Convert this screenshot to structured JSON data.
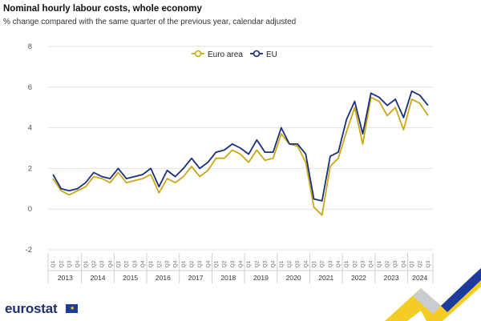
{
  "title": "Nominal hourly labour costs, whole economy",
  "subtitle": "% change compared with the same quarter of the previous year, calendar adjusted",
  "brand": {
    "name": "eurostat",
    "logo_icon": "eu-flag-icon"
  },
  "colors": {
    "euro_area": "#c9a816",
    "eu": "#1a2e7a",
    "grid": "#e3e3e3"
  },
  "chart_data": {
    "type": "line",
    "title": "Nominal hourly labour costs, whole economy",
    "subtitle": "% change compared with the same quarter of the previous year, calendar adjusted",
    "xlabel": "",
    "ylabel": "",
    "ylim": [
      -2,
      8
    ],
    "yticks": [
      "8",
      "6",
      "4",
      "2",
      "0",
      "-2"
    ],
    "grid": true,
    "legend_position": "top-center",
    "quarter_labels": [
      "Q1",
      "Q2",
      "Q3",
      "Q4"
    ],
    "years": [
      "2013",
      "2014",
      "2015",
      "2016",
      "2017",
      "2018",
      "2019",
      "2020",
      "2021",
      "2022",
      "2023",
      "2024"
    ],
    "x": [
      "2013-Q1",
      "2013-Q2",
      "2013-Q3",
      "2013-Q4",
      "2014-Q1",
      "2014-Q2",
      "2014-Q3",
      "2014-Q4",
      "2015-Q1",
      "2015-Q2",
      "2015-Q3",
      "2015-Q4",
      "2016-Q1",
      "2016-Q2",
      "2016-Q3",
      "2016-Q4",
      "2017-Q1",
      "2017-Q2",
      "2017-Q3",
      "2017-Q4",
      "2018-Q1",
      "2018-Q2",
      "2018-Q3",
      "2018-Q4",
      "2019-Q1",
      "2019-Q2",
      "2019-Q3",
      "2019-Q4",
      "2020-Q1",
      "2020-Q2",
      "2020-Q3",
      "2020-Q4",
      "2021-Q1",
      "2021-Q2",
      "2021-Q3",
      "2021-Q4",
      "2022-Q1",
      "2022-Q2",
      "2022-Q3",
      "2022-Q4",
      "2023-Q1",
      "2023-Q2",
      "2023-Q3",
      "2023-Q4",
      "2024-Q1",
      "2024-Q2",
      "2024-Q3"
    ],
    "series": [
      {
        "name": "Euro area",
        "color": "#c9a816",
        "values": [
          1.5,
          0.9,
          0.7,
          0.9,
          1.1,
          1.6,
          1.5,
          1.3,
          1.8,
          1.3,
          1.4,
          1.5,
          1.7,
          0.8,
          1.5,
          1.3,
          1.6,
          2.1,
          1.6,
          1.9,
          2.5,
          2.5,
          2.9,
          2.7,
          2.3,
          2.9,
          2.4,
          2.5,
          3.7,
          3.2,
          3.1,
          2.3,
          0.1,
          -0.3,
          2.1,
          2.5,
          3.8,
          5.0,
          3.2,
          5.5,
          5.3,
          4.6,
          5.0,
          3.9,
          5.4,
          5.2,
          4.6
        ]
      },
      {
        "name": "EU",
        "color": "#1a2e7a",
        "values": [
          1.7,
          1.0,
          0.9,
          1.0,
          1.3,
          1.8,
          1.6,
          1.5,
          2.0,
          1.5,
          1.6,
          1.7,
          2.0,
          1.1,
          1.9,
          1.6,
          2.0,
          2.5,
          2.0,
          2.3,
          2.8,
          2.9,
          3.2,
          3.0,
          2.7,
          3.4,
          2.8,
          2.8,
          4.0,
          3.2,
          3.2,
          2.7,
          0.5,
          0.4,
          2.6,
          2.8,
          4.4,
          5.3,
          3.7,
          5.7,
          5.5,
          5.1,
          5.4,
          4.5,
          5.8,
          5.6,
          5.1
        ]
      }
    ]
  }
}
